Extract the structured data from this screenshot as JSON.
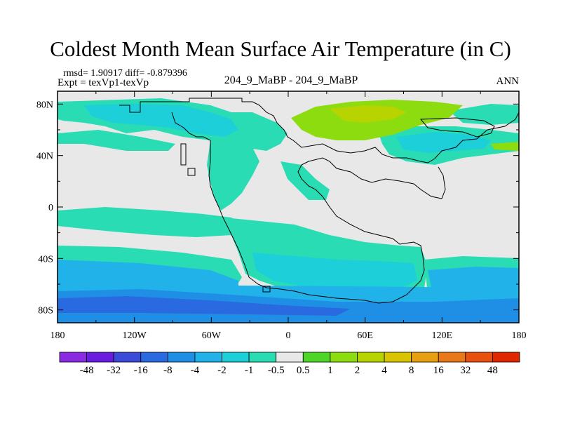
{
  "title": "Coldest Month Mean Surface Air Temperature (in C)",
  "stats_label": "rmsd= 1.90917 diff= -0.879396",
  "experiment_label": "Expt = texVp1-texVp",
  "center_label": "204_9_MaBP - 204_9_MaBP",
  "season_label": "ANN",
  "map": {
    "lat_ticks": [
      {
        "value": 80,
        "label": "80N"
      },
      {
        "value": 40,
        "label": "40N"
      },
      {
        "value": 0,
        "label": "0"
      },
      {
        "value": -40,
        "label": "40S"
      },
      {
        "value": -80,
        "label": "80S"
      }
    ],
    "lon_ticks": [
      {
        "value": -180,
        "label": "180"
      },
      {
        "value": -120,
        "label": "120W"
      },
      {
        "value": -60,
        "label": "60W"
      },
      {
        "value": 0,
        "label": "0"
      },
      {
        "value": 60,
        "label": "60E"
      },
      {
        "value": 120,
        "label": "120E"
      },
      {
        "value": 180,
        "label": "180"
      }
    ],
    "lat_range": [
      -90,
      90
    ],
    "lon_range": [
      -180,
      180
    ]
  },
  "colorbar": {
    "colors": [
      "#8a2be2",
      "#6a1be0",
      "#3c4ad8",
      "#2a6ae0",
      "#1f8fe6",
      "#22b2ea",
      "#1ccfd8",
      "#2adcb3",
      "#e8e8e8",
      "#4dd628",
      "#8cdc10",
      "#b8d400",
      "#d8c400",
      "#e8a010",
      "#e87818",
      "#e85010",
      "#e02800"
    ],
    "labels": [
      "-48",
      "-32",
      "-16",
      "-8",
      "-4",
      "-2",
      "-1",
      "-0.5",
      "0.5",
      "1",
      "2",
      "4",
      "8",
      "16",
      "32",
      "48"
    ]
  }
}
